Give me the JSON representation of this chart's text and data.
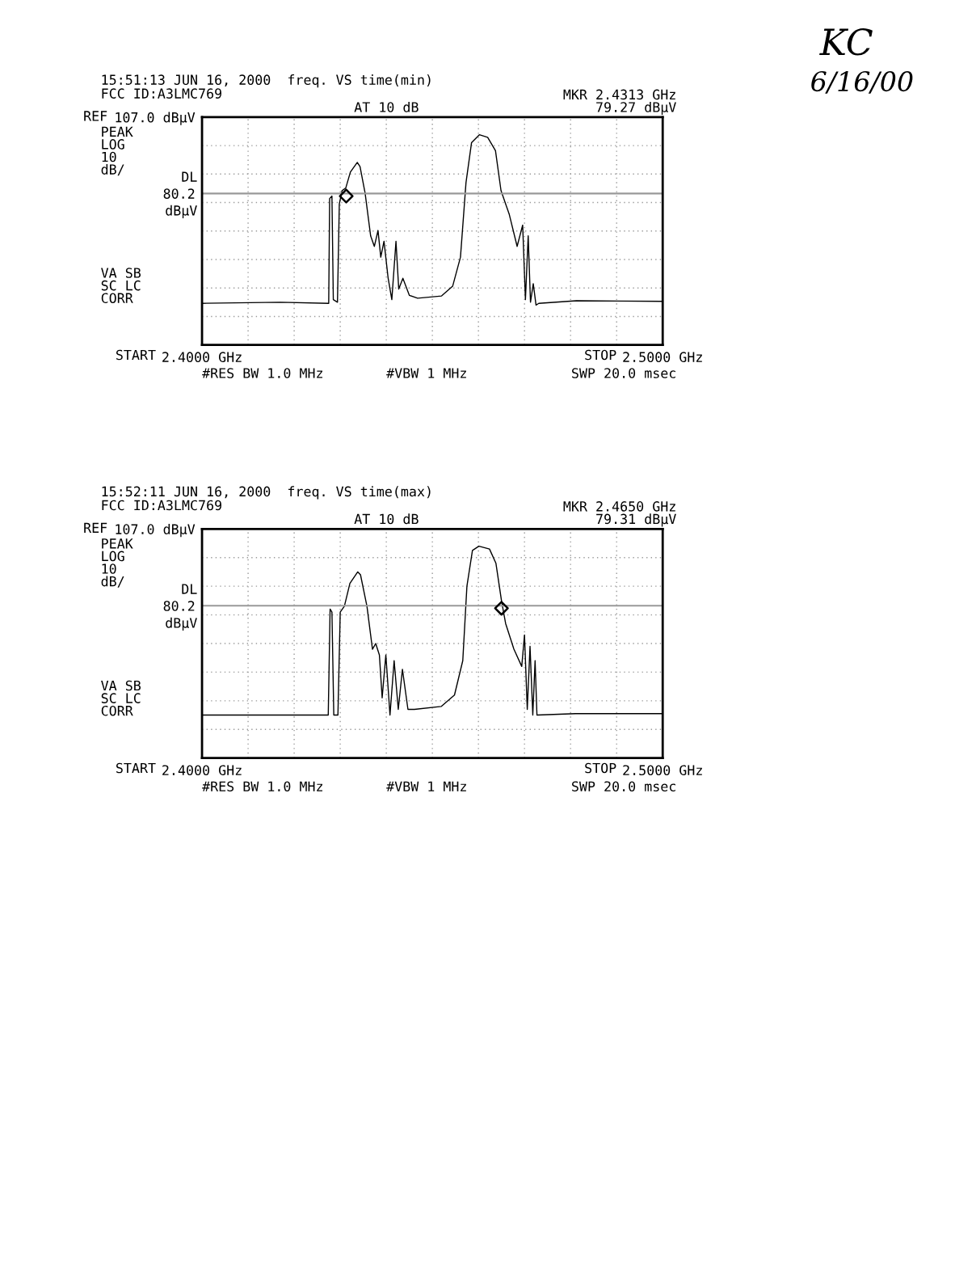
{
  "chart_data": [
    {
      "type": "line",
      "title": "15:51:13 JUN 16, 2000  freq. VS time(min)",
      "subtitle": "FCC ID:A3LMC769",
      "series": [
        {
          "color": "#000000",
          "x": [
            2.4,
            2.417,
            2.4275,
            2.4277,
            2.4282,
            2.4285,
            2.4294,
            2.4298,
            2.4304,
            2.4312,
            2.4322,
            2.4337,
            2.4343,
            2.4354,
            2.4366,
            2.4374,
            2.4382,
            2.4388,
            2.4395,
            2.4404,
            2.4412,
            2.4421,
            2.4427,
            2.4436,
            2.445,
            2.4468,
            2.452,
            2.4544,
            2.4561,
            2.4573,
            2.4585,
            2.4602,
            2.462,
            2.4637,
            2.4649,
            2.4667,
            2.4684,
            2.4696,
            2.4702,
            2.4708,
            2.4713,
            2.4719,
            2.4725,
            2.4731,
            2.4813,
            2.5
          ],
          "values": [
            41.6,
            42,
            41.6,
            78.4,
            79.3,
            42.9,
            42,
            76.5,
            81.2,
            82.1,
            87.7,
            91.1,
            89.6,
            80.3,
            65.3,
            61.6,
            67.2,
            57.8,
            63.4,
            50.4,
            42.9,
            63.4,
            46.6,
            50.4,
            44.4,
            43.4,
            44.2,
            47.6,
            57.8,
            84,
            98,
            100.8,
            99.9,
            95.2,
            81.2,
            72.8,
            61.6,
            69.1,
            42.9,
            65.3,
            42,
            48.5,
            41,
            41.6,
            42.5,
            42.3
          ]
        },
        {
          "type": "scatter",
          "marker": "diamond",
          "color": "#000000",
          "x": [
            2.4313
          ],
          "values": [
            79.27
          ]
        }
      ],
      "xlim": [
        2.4,
        2.5
      ],
      "xticks": [
        {
          "value": 2.4,
          "label": "2.4000 GHz"
        },
        {
          "value": 2.41,
          "label": null
        },
        {
          "value": 2.42,
          "label": null
        },
        {
          "value": 2.43,
          "label": null
        },
        {
          "value": 2.44,
          "label": null
        },
        {
          "value": 2.45,
          "label": null
        },
        {
          "value": 2.46,
          "label": null
        },
        {
          "value": 2.47,
          "label": null
        },
        {
          "value": 2.48,
          "label": null
        },
        {
          "value": 2.49,
          "label": null
        },
        {
          "value": 2.5,
          "label": "2.5000 GHz"
        }
      ],
      "ylim": [
        27,
        107
      ],
      "yticks": [
        {
          "value": 27,
          "label": null
        },
        {
          "value": 37,
          "label": null
        },
        {
          "value": 47,
          "label": null
        },
        {
          "value": 57,
          "label": null
        },
        {
          "value": 67,
          "label": null
        },
        {
          "value": 77,
          "label": null
        },
        {
          "value": 80.2,
          "label": "80.2"
        },
        {
          "value": 87,
          "label": null
        },
        {
          "value": 97,
          "label": null
        },
        {
          "value": 107,
          "label": "107.0 dBμV"
        }
      ],
      "grid": true,
      "ref_lines": [
        {
          "axis": "y",
          "value": 80.2,
          "label": "DL",
          "color": "#999999"
        }
      ],
      "annotations": [
        "REF",
        "AT 10 dB",
        "PEAK\nLOG\n10\ndB/",
        "dBμV",
        "VA SB\nSC LC\nCORR",
        "START",
        "STOP",
        "#RES BW 1.0 MHz",
        "#VBW 1 MHz",
        "SWP 20.0 msec",
        "MKR 2.4313 GHz\n79.27 dBμV",
        "KC",
        "6/16/00"
      ]
    },
    {
      "type": "line",
      "title": "15:52:11 JUN 16, 2000  freq. VS time(max)",
      "subtitle": "FCC ID:A3LMC769",
      "series": [
        {
          "color": "#000000",
          "x": [
            2.4,
            2.4274,
            2.4278,
            2.4282,
            2.4286,
            2.4295,
            2.43,
            2.4309,
            2.4321,
            2.4338,
            2.4344,
            2.4358,
            2.437,
            2.4377,
            2.4385,
            2.4391,
            2.4399,
            2.4408,
            2.4417,
            2.4426,
            2.4435,
            2.4447,
            2.4461,
            2.4519,
            2.4548,
            2.4566,
            2.4575,
            2.4587,
            2.4601,
            2.4624,
            2.4638,
            2.465,
            2.4659,
            2.4677,
            2.4694,
            2.47,
            2.4706,
            2.4712,
            2.4718,
            2.4723,
            2.4727,
            2.4811,
            2.5
          ],
          "values": [
            42,
            42,
            79,
            78,
            42,
            42,
            78,
            80,
            88,
            92,
            91,
            80,
            65,
            67,
            63,
            48,
            63,
            42,
            61,
            44,
            58,
            44,
            44,
            45,
            49,
            61,
            87,
            99.5,
            101,
            100,
            95,
            82,
            74,
            65,
            59,
            70,
            44,
            66,
            42,
            61,
            42,
            42.5,
            42.5
          ]
        },
        {
          "type": "scatter",
          "marker": "diamond",
          "color": "#000000",
          "x": [
            2.465
          ],
          "values": [
            79.31
          ]
        }
      ],
      "xlim": [
        2.4,
        2.5
      ],
      "xticks": [
        {
          "value": 2.4,
          "label": "2.4000 GHz"
        },
        {
          "value": 2.41,
          "label": null
        },
        {
          "value": 2.42,
          "label": null
        },
        {
          "value": 2.43,
          "label": null
        },
        {
          "value": 2.44,
          "label": null
        },
        {
          "value": 2.45,
          "label": null
        },
        {
          "value": 2.46,
          "label": null
        },
        {
          "value": 2.47,
          "label": null
        },
        {
          "value": 2.48,
          "label": null
        },
        {
          "value": 2.49,
          "label": null
        },
        {
          "value": 2.5,
          "label": "2.5000 GHz"
        }
      ],
      "ylim": [
        27,
        107
      ],
      "yticks": [
        {
          "value": 27,
          "label": null
        },
        {
          "value": 37,
          "label": null
        },
        {
          "value": 47,
          "label": null
        },
        {
          "value": 57,
          "label": null
        },
        {
          "value": 67,
          "label": null
        },
        {
          "value": 77,
          "label": null
        },
        {
          "value": 80.2,
          "label": "80.2"
        },
        {
          "value": 87,
          "label": null
        },
        {
          "value": 97,
          "label": null
        },
        {
          "value": 107,
          "label": "107.0 dBμV"
        }
      ],
      "grid": true,
      "ref_lines": [
        {
          "axis": "y",
          "value": 80.2,
          "label": "DL",
          "color": "#999999"
        }
      ],
      "annotations": [
        "REF",
        "AT 10 dB",
        "PEAK\nLOG\n10\ndB/",
        "dBμV",
        "VA SB\nSC LC\nCORR",
        "START",
        "STOP",
        "#RES BW 1.0 MHz",
        "#VBW 1 MHz",
        "SWP 20.0 msec",
        "MKR 2.4650 GHz\n79.31 dBμV"
      ]
    }
  ]
}
